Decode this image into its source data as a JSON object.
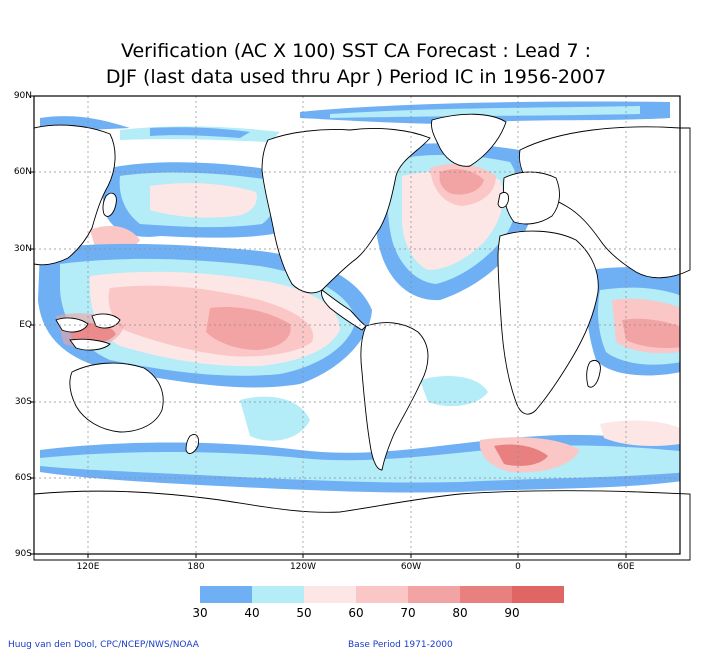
{
  "title": {
    "line1": "Verification (AC X 100) SST CA Forecast : Lead 7 :",
    "line2": "DJF (last data used thru Apr ) Period IC in 1956-2007"
  },
  "axes": {
    "lat_labels": [
      "90N",
      "60N",
      "30N",
      "EQ",
      "30S",
      "60S",
      "90S"
    ],
    "lon_labels": [
      "120E",
      "180",
      "120W",
      "60W",
      "0",
      "60E"
    ]
  },
  "colorbar": {
    "labels": [
      "30",
      "40",
      "50",
      "60",
      "70",
      "80",
      "90"
    ],
    "colors": [
      "#6fb0f4",
      "#b4ecf8",
      "#fde6e6",
      "#fbc6c6",
      "#f2a4a4",
      "#e88080",
      "#e06666"
    ]
  },
  "footer": {
    "left": "Huug van den Dool, CPC/NCEP/NWS/NOAA",
    "right": "Base Period 1971-2000"
  }
}
